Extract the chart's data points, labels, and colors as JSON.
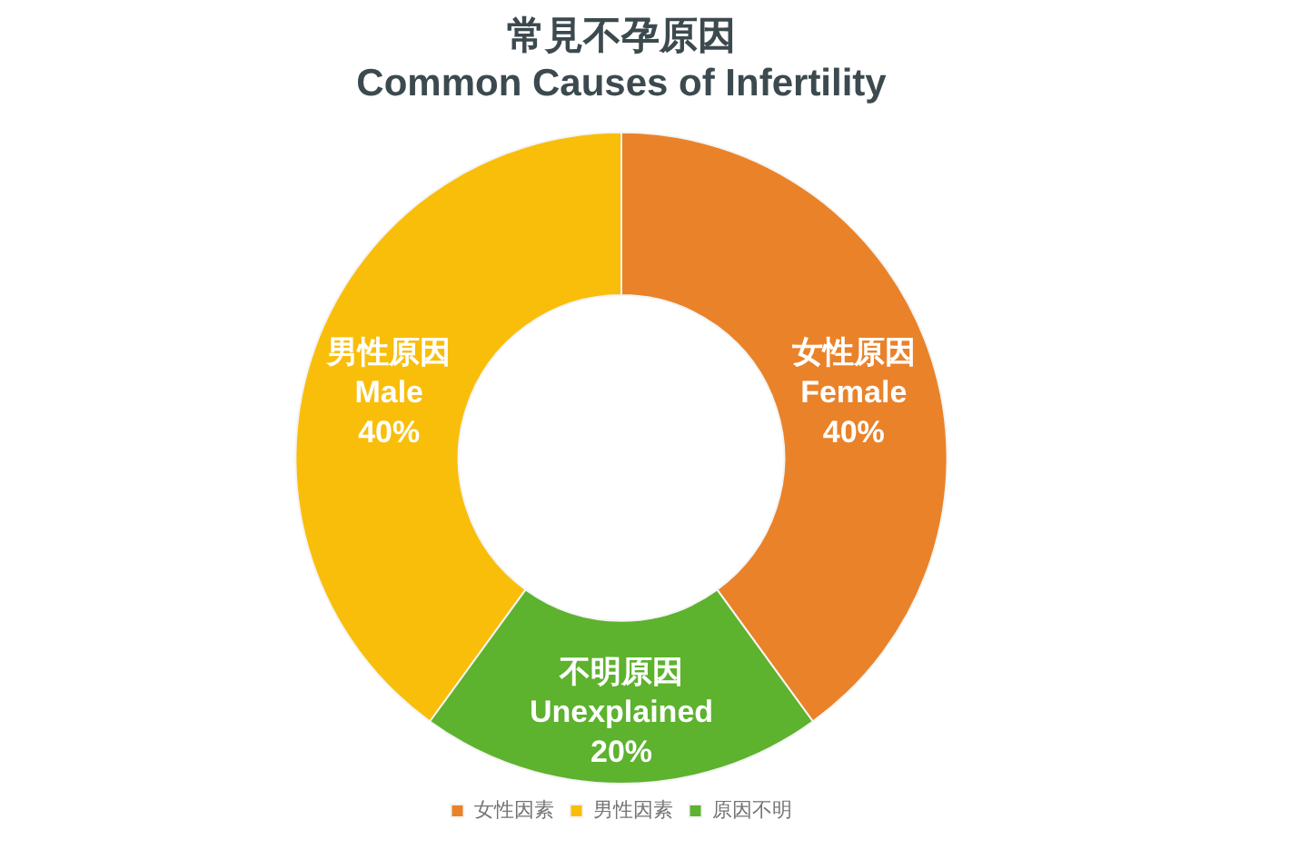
{
  "chart_data": {
    "type": "donut",
    "title": "常見不孕原因",
    "subtitle": "Common Causes of Infertility",
    "categories": [
      "女性因素",
      "男性因素",
      "原因不明"
    ],
    "values": [
      40,
      40,
      20
    ],
    "colors": [
      "#ea8229",
      "#f9be0a",
      "#5db22e"
    ],
    "value_labels": [
      "女性原因\nFemale\n40%",
      "男性原因\nMale\n40%",
      "不明原因\nUnexplained\n20%"
    ],
    "legend": "bottom"
  }
}
